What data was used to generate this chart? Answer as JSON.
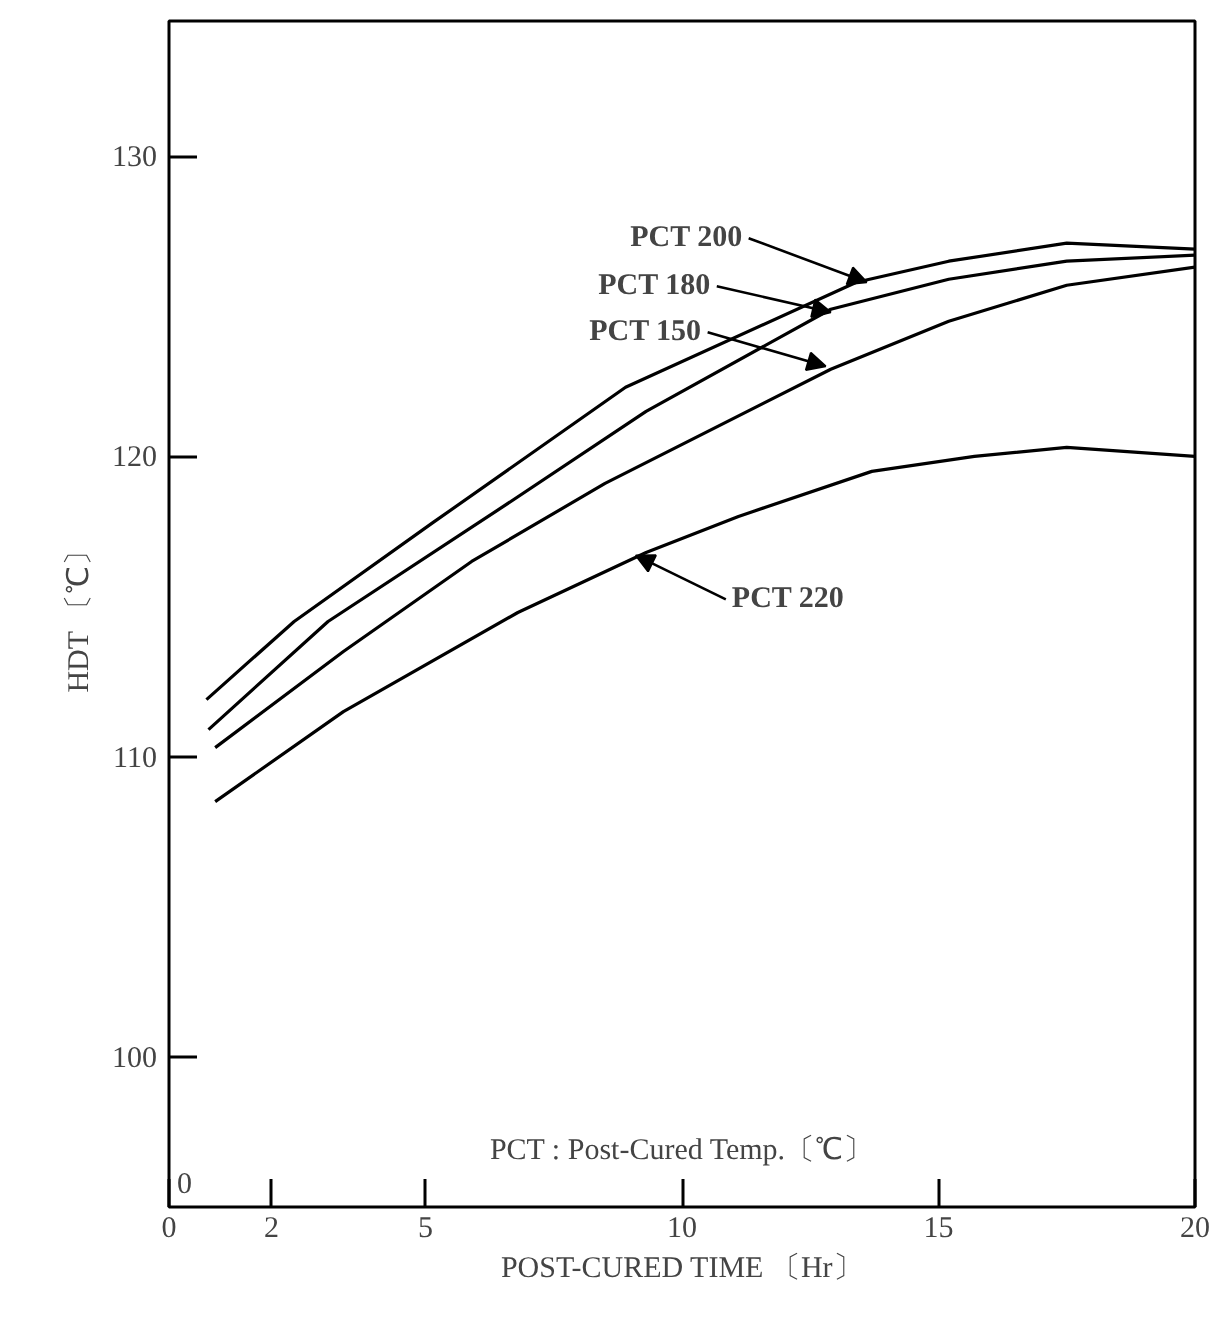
{
  "chart_data": {
    "type": "line",
    "xlabel": "POST-CURED TIME 〔Hr〕",
    "ylabel": "HDT 〔℃〕",
    "xlim": [
      0,
      20
    ],
    "ylim": [
      95,
      134.5
    ],
    "xticks": [
      0,
      2,
      5,
      10,
      15,
      20
    ],
    "yticks": [
      100,
      110,
      120,
      130
    ],
    "grid": false,
    "marker": "none",
    "line_style": "solid",
    "series": [
      {
        "color": "#000000",
        "x": [
          0.73,
          2.44,
          5.15,
          8.9,
          13.4,
          15.2,
          17.5,
          20
        ],
        "values": [
          111.9,
          114.5,
          117.8,
          122.3,
          125.8,
          126.5,
          127.1,
          126.9
        ]
      },
      {
        "color": "#000000",
        "x": [
          0.77,
          3.1,
          6.4,
          9.3,
          12.9,
          15.2,
          17.5,
          20
        ],
        "values": [
          110.9,
          114.5,
          118.2,
          121.5,
          124.9,
          125.9,
          126.5,
          126.7
        ]
      },
      {
        "color": "#000000",
        "x": [
          0.9,
          3.4,
          5.9,
          8.5,
          12.9,
          15.2,
          17.5,
          20
        ],
        "values": [
          110.3,
          113.5,
          116.5,
          119.1,
          122.9,
          124.5,
          125.7,
          126.3
        ]
      },
      {
        "color": "#000000",
        "x": [
          0.9,
          3.4,
          6.8,
          9.3,
          11.1,
          13.7,
          15.7,
          17.5,
          20
        ],
        "values": [
          108.5,
          111.5,
          114.8,
          116.8,
          118.0,
          119.5,
          120.0,
          120.3,
          120.0
        ]
      }
    ],
    "annotations": [
      {
        "text": "PCT 200",
        "x": 13.6,
        "y": 125.8
      },
      {
        "text": "PCT 180",
        "x": 12.9,
        "y": 124.8
      },
      {
        "text": "PCT 150",
        "x": 12.8,
        "y": 123.0
      },
      {
        "text": "PCT 220",
        "x": 9.1,
        "y": 116.7
      },
      "0",
      "PCT : Post-Cured Temp.〔℃〕"
    ]
  }
}
